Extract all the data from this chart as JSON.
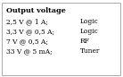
{
  "title": "Output voltage",
  "rows": [
    [
      "2,5 V @ 1 A;",
      "Logic"
    ],
    [
      "3,3 V @ 0,5 A;",
      "Logic"
    ],
    [
      "7 V @ 0,5 A;",
      "RF"
    ],
    [
      "33 V @ 5 mA;",
      "Tuner"
    ]
  ],
  "bg_color": "#ffffff",
  "border_color": "#aaaaaa",
  "text_color": "#000000",
  "title_fontsize": 5.8,
  "body_fontsize": 5.4,
  "fig_width": 1.38,
  "fig_height": 0.86
}
